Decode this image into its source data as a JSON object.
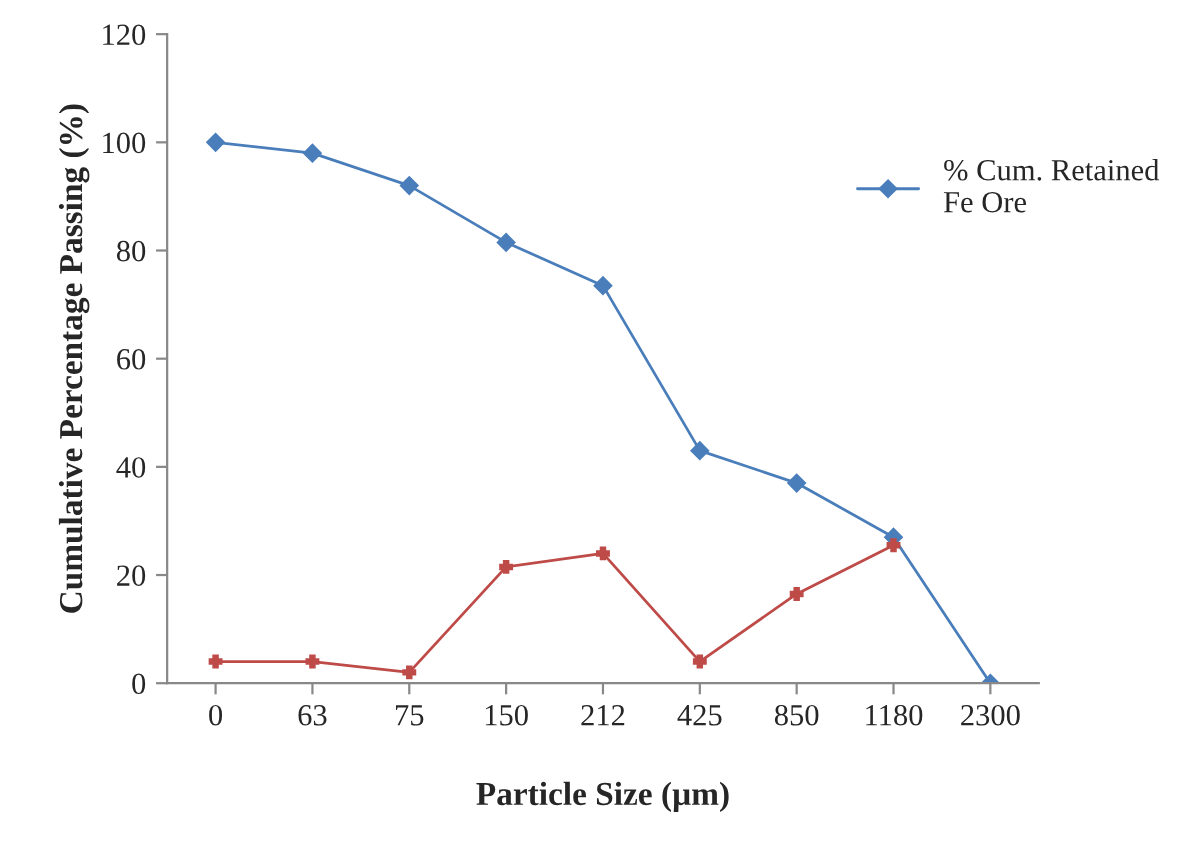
{
  "chart_data": {
    "type": "line",
    "xlabel": "Particle Size (µm)",
    "ylabel": "Cumulative Percentage Passing (%)",
    "categories": [
      "0",
      "63",
      "75",
      "150",
      "212",
      "425",
      "850",
      "1180",
      "2300"
    ],
    "series": [
      {
        "name": "% Cum. Retained\nFe Ore",
        "color": "#4a7ebb",
        "marker": "diamond",
        "values": [
          100,
          98,
          92,
          81.5,
          73.5,
          43,
          37,
          27,
          0
        ]
      },
      {
        "color": "#be4b48",
        "marker": "cross",
        "values": [
          4,
          4,
          2,
          21.5,
          24,
          4,
          16.5,
          25.5,
          null
        ]
      }
    ],
    "ylim": [
      0,
      120
    ],
    "yticks": [
      0,
      20,
      40,
      60,
      80,
      100,
      120
    ],
    "grid": false,
    "legend": "top right",
    "line_style": "solid"
  }
}
